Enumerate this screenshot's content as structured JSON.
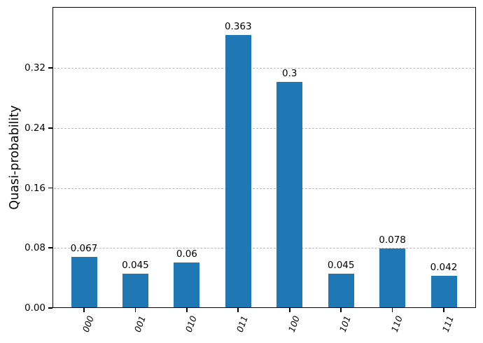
{
  "chart_data": {
    "type": "bar",
    "title": "",
    "xlabel": "",
    "ylabel": "Quasi-probability",
    "categories": [
      "000",
      "001",
      "010",
      "011",
      "100",
      "101",
      "110",
      "111"
    ],
    "values": [
      0.067,
      0.045,
      0.06,
      0.363,
      0.3,
      0.045,
      0.078,
      0.042
    ],
    "bar_value_labels": [
      "0.067",
      "0.045",
      "0.06",
      "0.363",
      "0.3",
      "0.045",
      "0.078",
      "0.042"
    ],
    "yticks": [
      {
        "value": 0.0,
        "label": "0.00"
      },
      {
        "value": 0.08,
        "label": "0.08"
      },
      {
        "value": 0.16,
        "label": "0.16"
      },
      {
        "value": 0.24,
        "label": "0.24"
      },
      {
        "value": 0.32,
        "label": "0.32"
      }
    ],
    "ylim": [
      0,
      0.4
    ],
    "grid": "horizontal-dashed",
    "legend": "none",
    "bar_color": "#1f77b4",
    "gridline_color": "#b9b9bd"
  }
}
